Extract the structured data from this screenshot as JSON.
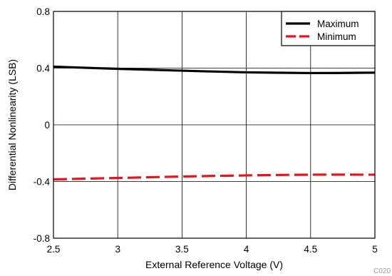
{
  "chart_data": {
    "type": "line",
    "xlabel": "External Reference Voltage (V)",
    "ylabel": "Differential Nonlinearity (LSB)",
    "xlim": [
      2.5,
      5
    ],
    "ylim": [
      -0.8,
      0.8
    ],
    "x_ticks": [
      "2.5",
      "3",
      "3.5",
      "4",
      "4.5",
      "5"
    ],
    "y_ticks": [
      "0.8",
      "0.4",
      "0",
      "-0.4",
      "-0.8"
    ],
    "grid": true,
    "legend_position": "top-right",
    "figure_code": "C020",
    "series": [
      {
        "name": "Maximum",
        "color": "#000000",
        "dash": "solid",
        "points": [
          [
            2.5,
            0.41
          ],
          [
            3.0,
            0.395
          ],
          [
            3.5,
            0.382
          ],
          [
            4.0,
            0.37
          ],
          [
            4.5,
            0.365
          ],
          [
            5.0,
            0.368
          ]
        ]
      },
      {
        "name": "Minimum",
        "color": "#e8141b",
        "dash": "dashed",
        "points": [
          [
            2.5,
            -0.385
          ],
          [
            3.0,
            -0.375
          ],
          [
            3.5,
            -0.365
          ],
          [
            4.0,
            -0.357
          ],
          [
            4.5,
            -0.352
          ],
          [
            5.0,
            -0.352
          ]
        ]
      }
    ]
  }
}
